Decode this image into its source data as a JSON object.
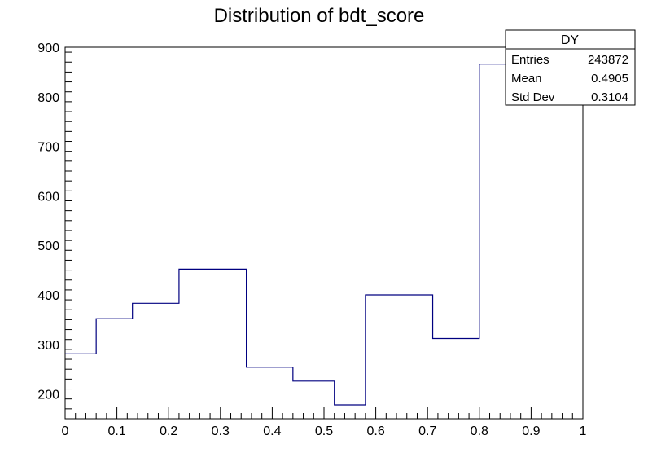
{
  "chart_data": {
    "type": "histogram",
    "title": "Distribution of bdt_score",
    "xlabel": "",
    "ylabel": "",
    "xlim": [
      0,
      1
    ],
    "ylim": [
      150,
      900
    ],
    "x_ticks": [
      "0",
      "0.1",
      "0.2",
      "0.3",
      "0.4",
      "0.5",
      "0.6",
      "0.7",
      "0.8",
      "0.9",
      "1"
    ],
    "y_ticks": [
      "200",
      "300",
      "400",
      "500",
      "600",
      "700",
      "800",
      "900"
    ],
    "line_color": "#000080",
    "bins": [
      {
        "x0": 0.0,
        "x1": 0.06,
        "value": 281
      },
      {
        "x0": 0.06,
        "x1": 0.13,
        "value": 352
      },
      {
        "x0": 0.13,
        "x1": 0.22,
        "value": 383
      },
      {
        "x0": 0.22,
        "x1": 0.35,
        "value": 452
      },
      {
        "x0": 0.35,
        "x1": 0.44,
        "value": 254
      },
      {
        "x0": 0.44,
        "x1": 0.52,
        "value": 226
      },
      {
        "x0": 0.52,
        "x1": 0.58,
        "value": 178
      },
      {
        "x0": 0.58,
        "x1": 0.71,
        "value": 400
      },
      {
        "x0": 0.71,
        "x1": 0.8,
        "value": 312
      },
      {
        "x0": 0.8,
        "x1": 1.0,
        "value": 866
      }
    ]
  },
  "stats_box": {
    "title": "DY",
    "rows": [
      {
        "label": "Entries",
        "value": "243872"
      },
      {
        "label": "Mean",
        "value": "0.4905"
      },
      {
        "label": "Std Dev",
        "value": "0.3104"
      }
    ]
  }
}
